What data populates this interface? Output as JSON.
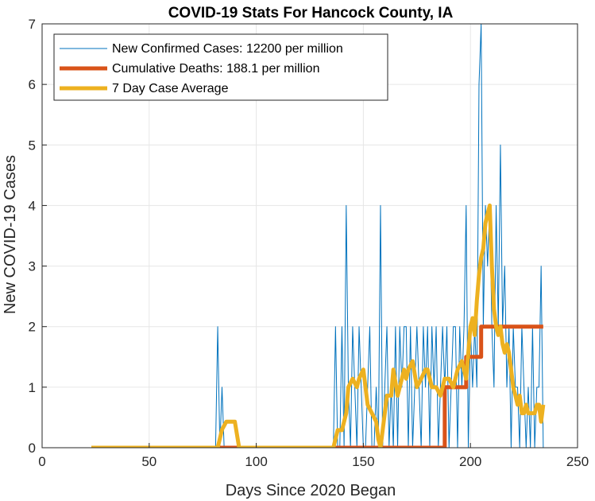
{
  "chart_data": {
    "type": "line",
    "title": "COVID-19 Stats For Hancock County, IA",
    "xlabel": "Days Since 2020 Began",
    "ylabel": "New COVID-19 Cases",
    "xlim": [
      0,
      250
    ],
    "ylim": [
      0,
      7
    ],
    "x_ticks": [
      0,
      50,
      100,
      150,
      200,
      250
    ],
    "y_ticks": [
      0,
      1,
      2,
      3,
      4,
      5,
      6,
      7
    ],
    "grid": true,
    "legend_position": "top-left",
    "series": [
      {
        "name": "New Confirmed Cases: 12200 per million",
        "color": "#0072bd",
        "x": [
          23,
          81,
          82,
          83,
          84,
          85,
          86,
          87,
          136,
          137,
          138,
          139,
          140,
          141,
          142,
          143,
          144,
          145,
          146,
          147,
          148,
          149,
          150,
          151,
          152,
          153,
          154,
          155,
          156,
          157,
          158,
          159,
          160,
          161,
          162,
          163,
          164,
          165,
          166,
          167,
          168,
          169,
          170,
          171,
          172,
          173,
          174,
          175,
          176,
          177,
          178,
          179,
          180,
          181,
          182,
          183,
          184,
          185,
          186,
          187,
          188,
          189,
          190,
          191,
          192,
          193,
          194,
          195,
          196,
          197,
          198,
          199,
          200,
          201,
          202,
          203,
          204,
          205,
          206,
          207,
          208,
          209,
          210,
          211,
          212,
          213,
          214,
          215,
          216,
          217,
          218,
          219,
          220,
          221,
          222,
          223,
          224,
          225,
          226,
          227,
          228,
          229,
          230,
          231,
          232,
          233,
          234
        ],
        "values": [
          0,
          0,
          2,
          0,
          1,
          0,
          0,
          0,
          0,
          2,
          0,
          0,
          2,
          0,
          4,
          1,
          0,
          2,
          1,
          0,
          2,
          1,
          0,
          0,
          1,
          2,
          0,
          0,
          1,
          0,
          4,
          0,
          1,
          2,
          0,
          1,
          0,
          2,
          0,
          2,
          1,
          2,
          2,
          0,
          2,
          0,
          1,
          2,
          1,
          0,
          2,
          1,
          2,
          0,
          2,
          1,
          2,
          0,
          1,
          2,
          1,
          2,
          0,
          1,
          2,
          2,
          0,
          2,
          1,
          2,
          4,
          0,
          2,
          1,
          2,
          1,
          6,
          7,
          2,
          4,
          3,
          4,
          2,
          1,
          4,
          2,
          5,
          2,
          3,
          1,
          2,
          0,
          2,
          1,
          1,
          0,
          2,
          1,
          0,
          1,
          0,
          2,
          0,
          1,
          1,
          3,
          0
        ]
      },
      {
        "name": "Cumulative Deaths: 188.1 per million",
        "color": "#d95319",
        "x": [
          23,
          187,
          188,
          197,
          198,
          205,
          234
        ],
        "values": [
          0,
          0,
          1,
          1,
          1.5,
          2,
          2
        ]
      },
      {
        "name": "7 Day Case Average",
        "color": "#edb120",
        "x": [
          23,
          82,
          84,
          86,
          88,
          90,
          92,
          136,
          138,
          140,
          142,
          143,
          145,
          147,
          148,
          150,
          152,
          154,
          156,
          157,
          158,
          160,
          161,
          163,
          164,
          166,
          167,
          169,
          170,
          171,
          173,
          175,
          177,
          179,
          180,
          182,
          184,
          186,
          188,
          190,
          192,
          194,
          196,
          198,
          200,
          201,
          202,
          203,
          204,
          205,
          206,
          207,
          208,
          209,
          210,
          211,
          212,
          213,
          214,
          215,
          216,
          217,
          218,
          219,
          220,
          221,
          222,
          223,
          224,
          225,
          226,
          227,
          228,
          229,
          230,
          231,
          232,
          233,
          234
        ],
        "values": [
          0,
          0,
          0.3,
          0.43,
          0.43,
          0.43,
          0,
          0,
          0.29,
          0.29,
          0.57,
          1.0,
          1.14,
          1.0,
          1.14,
          1.29,
          0.71,
          0.57,
          0.43,
          0.14,
          0,
          0.57,
          0.86,
          0.86,
          1.29,
          0.86,
          1.0,
          1.29,
          1.14,
          1.29,
          1.43,
          1.0,
          1.14,
          1.29,
          1.29,
          1.0,
          1.0,
          0.86,
          1.14,
          1.14,
          1.0,
          1.29,
          1.43,
          1.14,
          2.0,
          2.14,
          1.86,
          2.43,
          2.86,
          3.14,
          3.29,
          3.71,
          3.86,
          4.0,
          3.0,
          2.29,
          2.0,
          1.86,
          2.0,
          1.71,
          1.57,
          1.71,
          1.57,
          1.29,
          1.0,
          0.86,
          0.71,
          0.86,
          0.57,
          0.57,
          0.71,
          0.57,
          0.57,
          0.57,
          0.57,
          0.71,
          0.71,
          0.43,
          0.71
        ]
      }
    ]
  }
}
